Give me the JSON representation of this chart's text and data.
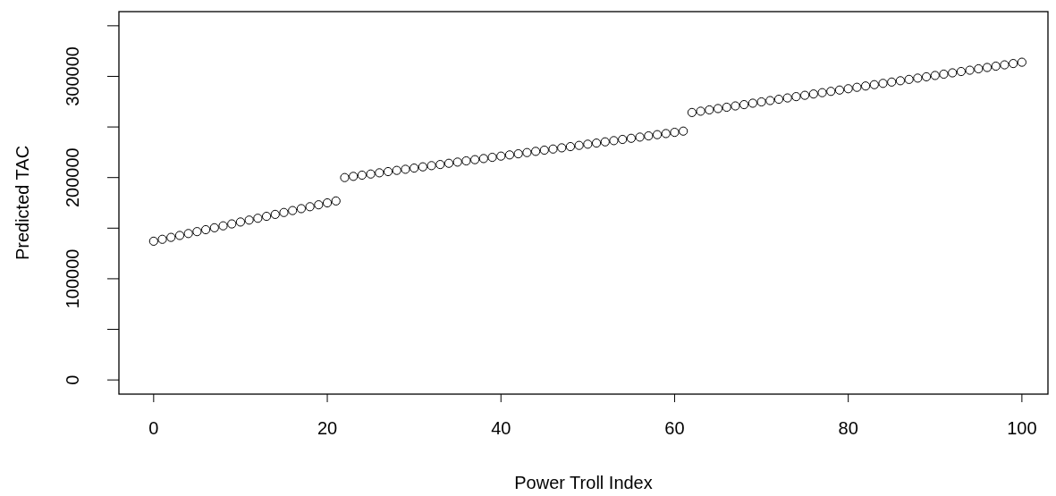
{
  "chart_data": {
    "type": "scatter",
    "xlabel": "Power Troll Index",
    "ylabel": "Predicted TAC",
    "marker": "circle",
    "grid": false,
    "xlim": [
      -4,
      103
    ],
    "xticks": [
      0,
      20,
      40,
      60,
      80,
      100
    ],
    "ylim": [
      -14000,
      364000
    ],
    "yticks": [
      0,
      {
        "value": 50000,
        "label": null
      },
      100000,
      {
        "value": 150000,
        "label": null
      },
      200000,
      {
        "value": 250000,
        "label": null
      },
      300000,
      {
        "value": 350000,
        "label": null
      }
    ],
    "series": [
      {
        "color": "#000000",
        "x": [
          0,
          1,
          2,
          3,
          4,
          5,
          6,
          7,
          8,
          9,
          10,
          11,
          12,
          13,
          14,
          15,
          16,
          17,
          18,
          19,
          20,
          21,
          22,
          23,
          24,
          25,
          26,
          27,
          28,
          29,
          30,
          31,
          32,
          33,
          34,
          35,
          36,
          37,
          38,
          39,
          40,
          41,
          42,
          43,
          44,
          45,
          46,
          47,
          48,
          49,
          50,
          51,
          52,
          53,
          54,
          55,
          56,
          57,
          58,
          59,
          60,
          61,
          62,
          63,
          64,
          65,
          66,
          67,
          68,
          69,
          70,
          71,
          72,
          73,
          74,
          75,
          76,
          77,
          78,
          79,
          80,
          81,
          82,
          83,
          84,
          85,
          86,
          87,
          88,
          89,
          90,
          91,
          92,
          93,
          94,
          95,
          96,
          97,
          98,
          99,
          100
        ],
        "values": [
          137100,
          139000,
          140900,
          142800,
          144700,
          146600,
          148500,
          150400,
          152300,
          154200,
          156100,
          158000,
          159800,
          161700,
          163600,
          165500,
          167400,
          169300,
          171200,
          173100,
          175000,
          176900,
          200000,
          201200,
          202400,
          203500,
          204700,
          205900,
          207100,
          208200,
          209400,
          210600,
          211800,
          212900,
          214100,
          215300,
          216500,
          217700,
          218800,
          220000,
          221200,
          222400,
          223500,
          224700,
          225900,
          227100,
          228200,
          229400,
          230600,
          231800,
          233000,
          234100,
          235300,
          236500,
          237700,
          238800,
          240000,
          241200,
          242400,
          243500,
          244700,
          245900,
          264300,
          265600,
          266900,
          268200,
          269500,
          270800,
          272100,
          273500,
          274800,
          276100,
          277400,
          278700,
          280000,
          281300,
          282600,
          283900,
          285200,
          286500,
          287800,
          289200,
          290500,
          291800,
          293100,
          294400,
          295700,
          297000,
          298300,
          299600,
          300900,
          302200,
          303500,
          304800,
          306100,
          307500,
          308800,
          310100,
          311400,
          312700,
          314000
        ]
      }
    ]
  }
}
